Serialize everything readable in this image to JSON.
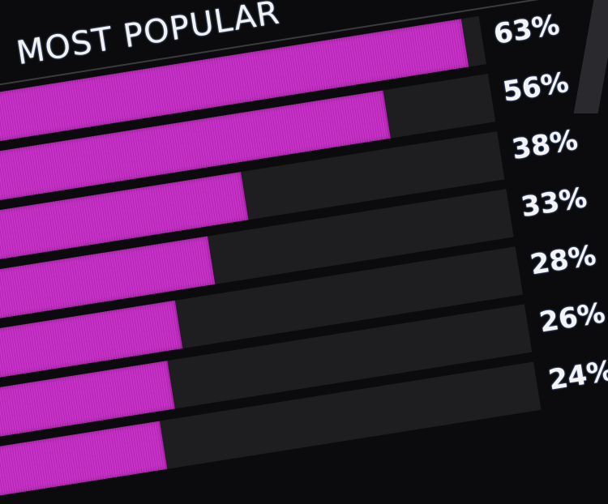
{
  "chart_data": {
    "type": "bar",
    "orientation": "horizontal",
    "title": "MOST POPULAR",
    "values": [
      63,
      56,
      38,
      33,
      28,
      26,
      24
    ],
    "labels": [
      "63%",
      "56%",
      "38%",
      "33%",
      "28%",
      "26%",
      "24%"
    ],
    "unit": "%",
    "bar_color": "#c832c8",
    "background_color": "#0b0b0d",
    "grid": false,
    "legend": "none"
  }
}
